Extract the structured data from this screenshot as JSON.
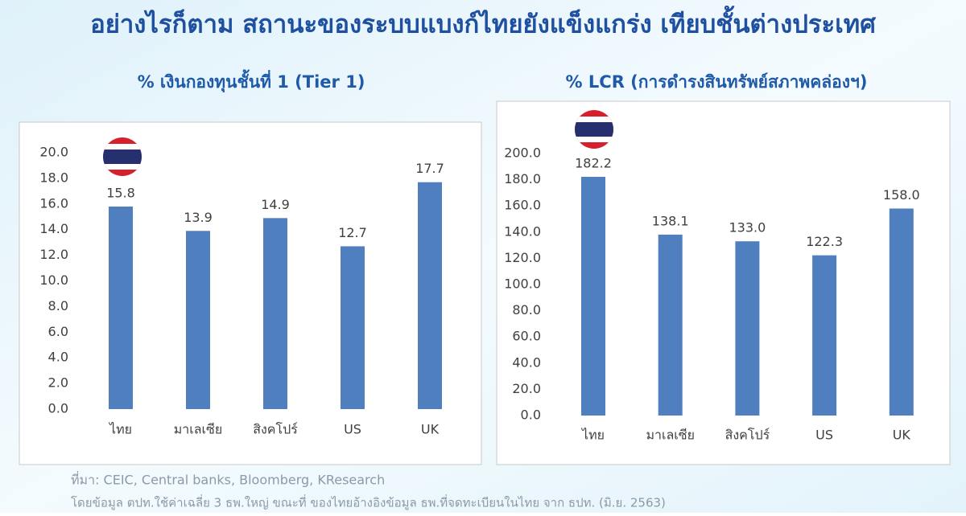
{
  "title": "อย่างไรก็ตาม สถานะของระบบแบงก์ไทยยังแข็งแกร่ง เทียบชั้นต่างประเทศ",
  "source": "ที่มา: CEIC, Central banks, Bloomberg, KResearch",
  "note": "โดยข้อมูล ตปท.ใช้ค่าเฉลี่ย 3 ธพ.ใหญ่ ขณะที่ ของไทยอ้างอิงข้อมูล ธพ.ที่จดทะเบียนในไทย จาก ธปท. (มิ.ย. 2563)",
  "chart_data": [
    {
      "type": "bar",
      "title": "% เงินกองทุนชั้นที่ 1 (Tier 1)",
      "categories": [
        "ไทย",
        "มาเลเซีย",
        "สิงคโปร์",
        "US",
        "UK"
      ],
      "values": [
        15.8,
        13.9,
        14.9,
        12.7,
        17.7
      ],
      "value_labels": [
        "15.8",
        "13.9",
        "14.9",
        "12.7",
        "17.7"
      ],
      "color": "#4f7fbe",
      "ylim": [
        0,
        20
      ],
      "yticks": [
        {
          "value": 0,
          "label": "0.0"
        },
        {
          "value": 2,
          "label": "2.0"
        },
        {
          "value": 4,
          "label": "4.0"
        },
        {
          "value": 6,
          "label": "6.0"
        },
        {
          "value": 8,
          "label": "8.0"
        },
        {
          "value": 10,
          "label": "10.0"
        },
        {
          "value": 12,
          "label": "12.0"
        },
        {
          "value": 14,
          "label": "14.0"
        },
        {
          "value": 16,
          "label": "16.0"
        },
        {
          "value": 18,
          "label": "18.0"
        },
        {
          "value": 20,
          "label": "20.0"
        }
      ],
      "grid": false
    },
    {
      "type": "bar",
      "title": "% LCR (การดำรงสินทรัพย์สภาพคล่องฯ)",
      "categories": [
        "ไทย",
        "มาเลเซีย",
        "สิงคโปร์",
        "US",
        "UK"
      ],
      "values": [
        182.2,
        138.1,
        133.0,
        122.3,
        158.0
      ],
      "value_labels": [
        "182.2",
        "138.1",
        "133.0",
        "122.3",
        "158.0"
      ],
      "color": "#4f7fbe",
      "ylim": [
        0,
        200
      ],
      "yticks": [
        {
          "value": 0,
          "label": "0.0"
        },
        {
          "value": 20,
          "label": "20.0"
        },
        {
          "value": 40,
          "label": "40.0"
        },
        {
          "value": 60,
          "label": "60.0"
        },
        {
          "value": 80,
          "label": "80.0"
        },
        {
          "value": 100,
          "label": "100.0"
        },
        {
          "value": 120,
          "label": "120.0"
        },
        {
          "value": 140,
          "label": "140.0"
        },
        {
          "value": 160,
          "label": "160.0"
        },
        {
          "value": 180,
          "label": "180.0"
        },
        {
          "value": 200,
          "label": "200.0"
        }
      ],
      "grid": false
    }
  ]
}
